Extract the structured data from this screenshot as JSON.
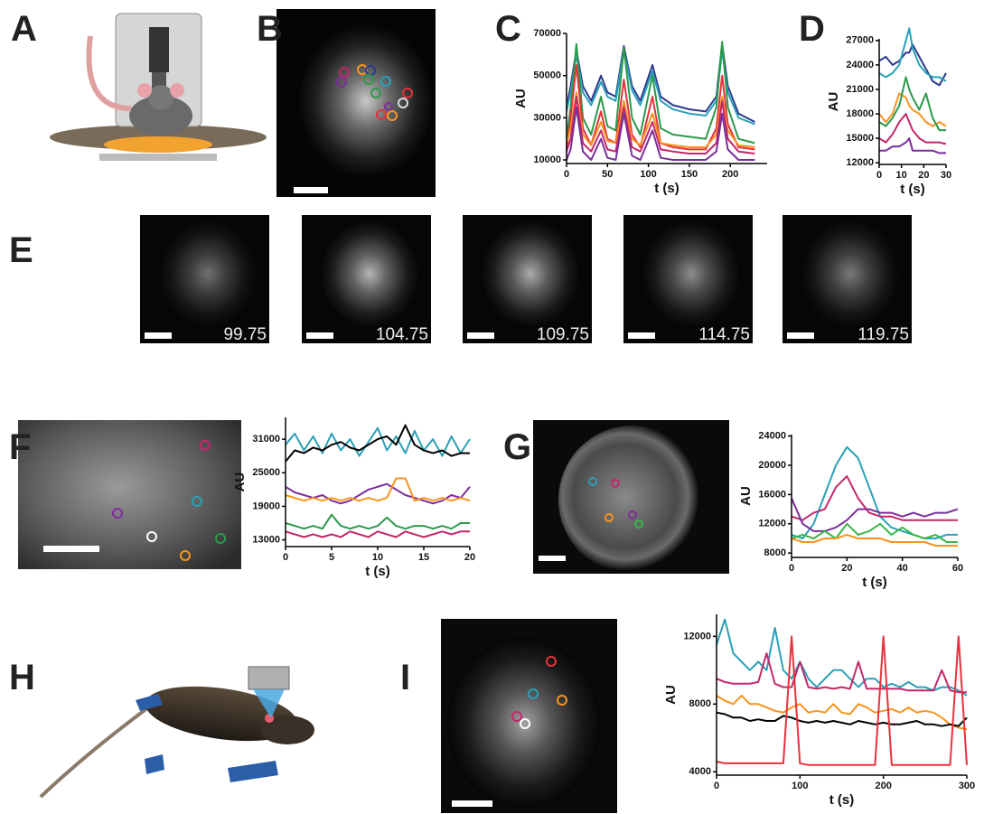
{
  "panel_labels": [
    "A",
    "B",
    "C",
    "D",
    "E",
    "F",
    "G",
    "H",
    "I"
  ],
  "panel_e": {
    "timestamps": [
      "99.75",
      "104.75",
      "109.75",
      "114.75",
      "119.75"
    ]
  },
  "chart_data": [
    {
      "type": "line",
      "x_label": "t (s)",
      "y_label": "AU",
      "x": [
        0,
        5,
        12,
        20,
        30,
        42,
        50,
        60,
        70,
        80,
        90,
        105,
        115,
        130,
        150,
        170,
        183,
        190,
        197,
        210,
        230
      ],
      "xlim": [
        0,
        245
      ],
      "ylim": [
        8300,
        70000
      ],
      "xticks": [
        0,
        50,
        100,
        150,
        200
      ],
      "yticks": [
        10000,
        30000,
        50000,
        70000
      ],
      "series": [
        {
          "color": "#2b3990",
          "values": [
            35000,
            45000,
            62000,
            45000,
            38000,
            50000,
            42000,
            40000,
            64000,
            45000,
            38000,
            55000,
            40000,
            36000,
            34000,
            33000,
            40000,
            65000,
            45000,
            32000,
            28000
          ]
        },
        {
          "color": "#2aa0b8",
          "values": [
            33000,
            42000,
            60000,
            42000,
            36000,
            47000,
            40000,
            38000,
            62000,
            43000,
            36000,
            52000,
            38000,
            34000,
            32000,
            31000,
            38000,
            62000,
            42000,
            30000,
            27000
          ]
        },
        {
          "color": "#2a9a4a",
          "values": [
            20000,
            35000,
            65000,
            30000,
            22000,
            40000,
            26000,
            24000,
            63000,
            30000,
            22000,
            50000,
            25000,
            22000,
            21000,
            20000,
            35000,
            66000,
            35000,
            20000,
            18000
          ]
        },
        {
          "color": "#e8323c",
          "values": [
            15000,
            30000,
            55000,
            25000,
            17000,
            33000,
            20000,
            18000,
            48000,
            22000,
            16000,
            40000,
            18000,
            16000,
            15000,
            15000,
            25000,
            50000,
            27000,
            16000,
            15000
          ]
        },
        {
          "color": "#f7941d",
          "values": [
            18000,
            25000,
            42000,
            22000,
            17000,
            28000,
            19000,
            18000,
            38000,
            20000,
            17000,
            32000,
            18000,
            17000,
            16000,
            16000,
            22000,
            40000,
            24000,
            17000,
            16000
          ]
        },
        {
          "color": "#c4276a",
          "values": [
            14000,
            20000,
            40000,
            18000,
            14000,
            24000,
            15000,
            14000,
            35000,
            16000,
            14000,
            28000,
            15000,
            14000,
            13000,
            13000,
            18000,
            38000,
            20000,
            14000,
            13000
          ]
        },
        {
          "color": "#7b2e9b",
          "values": [
            10000,
            15000,
            35000,
            14000,
            10000,
            20000,
            11000,
            10000,
            32000,
            12000,
            10000,
            24000,
            11000,
            10000,
            10000,
            10000,
            14000,
            32000,
            15000,
            10000,
            10000
          ]
        }
      ]
    },
    {
      "type": "line",
      "x_label": "t (s)",
      "y_label": "AU",
      "x": [
        0,
        3,
        6,
        9,
        12,
        13.5,
        15,
        18,
        21,
        24,
        27,
        30
      ],
      "xlim": [
        0,
        30
      ],
      "ylim": [
        11800,
        27200
      ],
      "xticks": [
        0,
        10,
        20,
        30
      ],
      "yticks": [
        12000,
        15000,
        18000,
        21000,
        24000,
        27000
      ],
      "series": [
        {
          "color": "#2b3990",
          "values": [
            24500,
            25000,
            24000,
            24500,
            25500,
            25500,
            26500,
            25000,
            23500,
            22000,
            21500,
            23000
          ]
        },
        {
          "color": "#2aa0b8",
          "values": [
            23000,
            22500,
            23000,
            24000,
            27000,
            28500,
            26000,
            24000,
            23000,
            22500,
            22500,
            22000
          ]
        },
        {
          "color": "#f7941d",
          "values": [
            18000,
            17000,
            18000,
            20500,
            20000,
            19000,
            18500,
            18000,
            17000,
            16500,
            17000,
            16500
          ]
        },
        {
          "color": "#2a9a4a",
          "values": [
            17000,
            16500,
            17500,
            19000,
            22500,
            21000,
            20000,
            18500,
            20500,
            17500,
            16000,
            16000
          ]
        },
        {
          "color": "#c4276a",
          "values": [
            15000,
            14500,
            15500,
            17000,
            18000,
            17000,
            16000,
            15000,
            14500,
            14500,
            14500,
            14300
          ]
        },
        {
          "color": "#7b2e9b",
          "values": [
            13500,
            13500,
            14000,
            14000,
            14500,
            15000,
            13500,
            13500,
            13500,
            13500,
            13200,
            13200
          ]
        }
      ]
    },
    {
      "type": "line",
      "x_label": "t (s)",
      "y_label": "AU",
      "x": [
        0,
        1,
        2,
        3,
        4,
        5,
        6,
        7,
        8,
        9,
        10,
        11,
        12,
        13,
        14,
        15,
        16,
        17,
        18,
        19,
        20
      ],
      "xlim": [
        0,
        20
      ],
      "ylim": [
        11800,
        34900
      ],
      "xticks": [
        0,
        5,
        10,
        15,
        20
      ],
      "yticks": [
        13000,
        19000,
        25000,
        31000
      ],
      "series": [
        {
          "color": "#2aa0b8",
          "values": [
            30000,
            32000,
            29000,
            31500,
            28500,
            32000,
            29000,
            31000,
            28000,
            30500,
            33000,
            29000,
            31500,
            28500,
            32500,
            29000,
            31000,
            28000,
            31500,
            28500,
            31000
          ]
        },
        {
          "color": "#000000",
          "values": [
            27000,
            29000,
            28500,
            29500,
            29000,
            30000,
            30500,
            29500,
            29000,
            30000,
            31000,
            31500,
            30000,
            33500,
            30000,
            29000,
            28500,
            29000,
            28000,
            28500,
            28500
          ]
        },
        {
          "color": "#7b2e9b",
          "values": [
            22500,
            21500,
            21000,
            20500,
            21000,
            20000,
            19500,
            20000,
            21000,
            22000,
            22500,
            23000,
            22000,
            21000,
            20500,
            20000,
            19500,
            20000,
            21000,
            20500,
            22500
          ]
        },
        {
          "color": "#f7941d",
          "values": [
            21000,
            20500,
            20000,
            20500,
            20000,
            20500,
            20000,
            20500,
            20000,
            20500,
            20000,
            20500,
            24000,
            24000,
            20000,
            20500,
            20000,
            20500,
            20000,
            20500,
            20000
          ]
        },
        {
          "color": "#2a9a4a",
          "values": [
            16000,
            15500,
            15000,
            15500,
            15000,
            17500,
            15500,
            15000,
            15500,
            15000,
            15500,
            17000,
            15500,
            15000,
            15500,
            15500,
            15000,
            15500,
            15000,
            16000,
            16000
          ]
        },
        {
          "color": "#c4276a",
          "values": [
            14500,
            14000,
            13500,
            14000,
            13500,
            14000,
            13500,
            14500,
            14000,
            13500,
            14500,
            14000,
            13500,
            14500,
            14000,
            13500,
            14000,
            14500,
            14000,
            14500,
            14500
          ]
        }
      ]
    },
    {
      "type": "line",
      "x_label": "t (s)",
      "y_label": "AU",
      "x": [
        0,
        4,
        8,
        12,
        16,
        20,
        24,
        28,
        32,
        36,
        40,
        44,
        48,
        52,
        56,
        60
      ],
      "xlim": [
        0,
        60
      ],
      "ylim": [
        7400,
        24200
      ],
      "xticks": [
        0,
        20,
        40,
        60
      ],
      "yticks": [
        8000,
        12000,
        16000,
        20000,
        24000
      ],
      "series": [
        {
          "color": "#2aa0b8",
          "values": [
            10500,
            10000,
            12000,
            16000,
            20000,
            22500,
            21000,
            17000,
            13000,
            11500,
            11000,
            10500,
            10000,
            10000,
            10500,
            10500
          ]
        },
        {
          "color": "#c4276a",
          "values": [
            13000,
            12500,
            13500,
            14000,
            17000,
            18500,
            15500,
            13500,
            13000,
            13000,
            12500,
            12500,
            12500,
            12500,
            12500,
            12500
          ]
        },
        {
          "color": "#7b2e9b",
          "values": [
            15500,
            12000,
            11000,
            11000,
            11500,
            12500,
            14000,
            14000,
            13500,
            13500,
            13000,
            13500,
            13000,
            13500,
            13500,
            14000
          ]
        },
        {
          "color": "#3ab54a",
          "values": [
            10000,
            10500,
            10000,
            11000,
            10000,
            12000,
            10500,
            11000,
            12000,
            10500,
            11500,
            10500,
            10000,
            10500,
            9500,
            9500
          ]
        },
        {
          "color": "#f7941d",
          "values": [
            10000,
            9500,
            9500,
            10000,
            10000,
            10500,
            10000,
            10000,
            10000,
            9500,
            9500,
            9500,
            9500,
            9000,
            9000,
            9000
          ]
        }
      ]
    },
    {
      "type": "line",
      "x_label": "t (s)",
      "y_label": "AU",
      "x": [
        0,
        10,
        20,
        30,
        40,
        50,
        60,
        70,
        80,
        90,
        100,
        110,
        120,
        130,
        140,
        150,
        160,
        170,
        180,
        190,
        200,
        210,
        220,
        230,
        240,
        250,
        260,
        270,
        280,
        290,
        300
      ],
      "xlim": [
        0,
        300
      ],
      "ylim": [
        3800,
        13300
      ],
      "xticks": [
        0,
        100,
        200,
        300
      ],
      "yticks": [
        4000,
        8000,
        12000
      ],
      "series": [
        {
          "color": "#2aa0b8",
          "values": [
            11500,
            13000,
            11000,
            10500,
            10000,
            10500,
            10000,
            12500,
            10000,
            9500,
            10500,
            9500,
            9000,
            9500,
            10000,
            10000,
            9500,
            9000,
            9500,
            9500,
            9000,
            9200,
            9000,
            9300,
            9000,
            9000,
            8800,
            9000,
            9000,
            8800,
            8500
          ]
        },
        {
          "color": "#c4276a",
          "values": [
            9500,
            9300,
            9200,
            9200,
            9200,
            9300,
            11000,
            9200,
            9000,
            9000,
            10500,
            9000,
            8900,
            9000,
            8900,
            9000,
            8900,
            10500,
            8900,
            8900,
            8900,
            8900,
            8900,
            8800,
            8800,
            8800,
            8800,
            10000,
            8800,
            8700,
            8700
          ]
        },
        {
          "color": "#f7941d",
          "values": [
            8500,
            8200,
            8000,
            8500,
            8000,
            8000,
            7800,
            7600,
            7500,
            7800,
            8000,
            7500,
            7600,
            7500,
            8000,
            7500,
            7400,
            8000,
            7800,
            7500,
            7600,
            7700,
            7500,
            7800,
            7500,
            7600,
            7500,
            7200,
            6800,
            6600,
            6500
          ]
        },
        {
          "color": "#000000",
          "values": [
            7500,
            7400,
            7200,
            7200,
            7000,
            7100,
            7000,
            7000,
            7300,
            7200,
            7000,
            6900,
            7000,
            6900,
            7000,
            6900,
            6800,
            7000,
            6900,
            6800,
            6900,
            6800,
            6800,
            6900,
            7000,
            6800,
            6800,
            6700,
            6800,
            6700,
            7200
          ]
        },
        {
          "color": "#e8323c",
          "values": [
            4600,
            4500,
            4500,
            4500,
            4500,
            4500,
            4500,
            4500,
            4500,
            12000,
            4500,
            4400,
            4400,
            4400,
            4400,
            4400,
            4400,
            4400,
            4400,
            4400,
            12000,
            4400,
            4400,
            4400,
            4400,
            4400,
            4400,
            4400,
            4400,
            12000,
            4400
          ]
        }
      ]
    }
  ]
}
